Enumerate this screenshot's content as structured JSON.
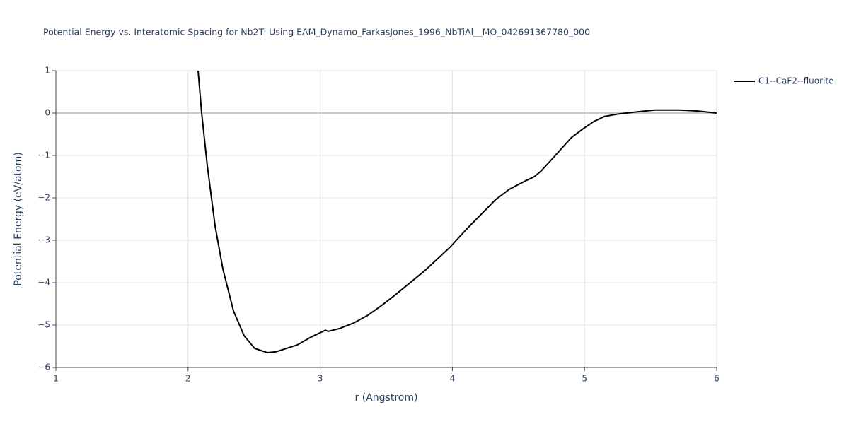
{
  "chart_data": {
    "type": "line",
    "title": "Potential Energy vs. Interatomic Spacing for Nb2Ti Using EAM_Dynamo_FarkasJones_1996_NbTiAl__MO_042691367780_000",
    "x_label": "r (Angstrom)",
    "y_label": "Potential Energy (eV/atom)",
    "xlim": [
      1,
      6
    ],
    "ylim": [
      -6,
      1
    ],
    "xticks": [
      1,
      2,
      3,
      4,
      5,
      6
    ],
    "yticks": [
      {
        "value": -6,
        "label": "−6"
      },
      {
        "value": -5,
        "label": "−5"
      },
      {
        "value": -4,
        "label": "−4"
      },
      {
        "value": -3,
        "label": "−3"
      },
      {
        "value": -2,
        "label": "−2"
      },
      {
        "value": -1,
        "label": "−1"
      },
      0,
      1
    ],
    "grid": true,
    "legend_position": "top-right",
    "series": [
      {
        "name": "C1--CaF2--fluorite",
        "color": "#000000",
        "x": [
          2.076,
          2.103,
          2.146,
          2.205,
          2.263,
          2.344,
          2.424,
          2.504,
          2.6,
          2.665,
          2.825,
          2.933,
          3.04,
          3.06,
          3.147,
          3.254,
          3.36,
          3.468,
          3.575,
          3.79,
          3.98,
          4.11,
          4.324,
          4.43,
          4.54,
          4.62,
          4.67,
          4.75,
          4.9,
          4.99,
          5.07,
          5.15,
          5.26,
          5.4,
          5.53,
          5.72,
          5.85,
          6.0
        ],
        "values": [
          1,
          0,
          -1.25,
          -2.67,
          -3.67,
          -4.67,
          -5.25,
          -5.55,
          -5.65,
          -5.63,
          -5.47,
          -5.28,
          -5.12,
          -5.15,
          -5.08,
          -4.95,
          -4.77,
          -4.53,
          -4.27,
          -3.72,
          -3.17,
          -2.73,
          -2.05,
          -1.8,
          -1.62,
          -1.5,
          -1.37,
          -1.1,
          -0.58,
          -0.37,
          -0.2,
          -0.08,
          -0.02,
          0.03,
          0.07,
          0.07,
          0.05,
          0
        ]
      }
    ]
  }
}
